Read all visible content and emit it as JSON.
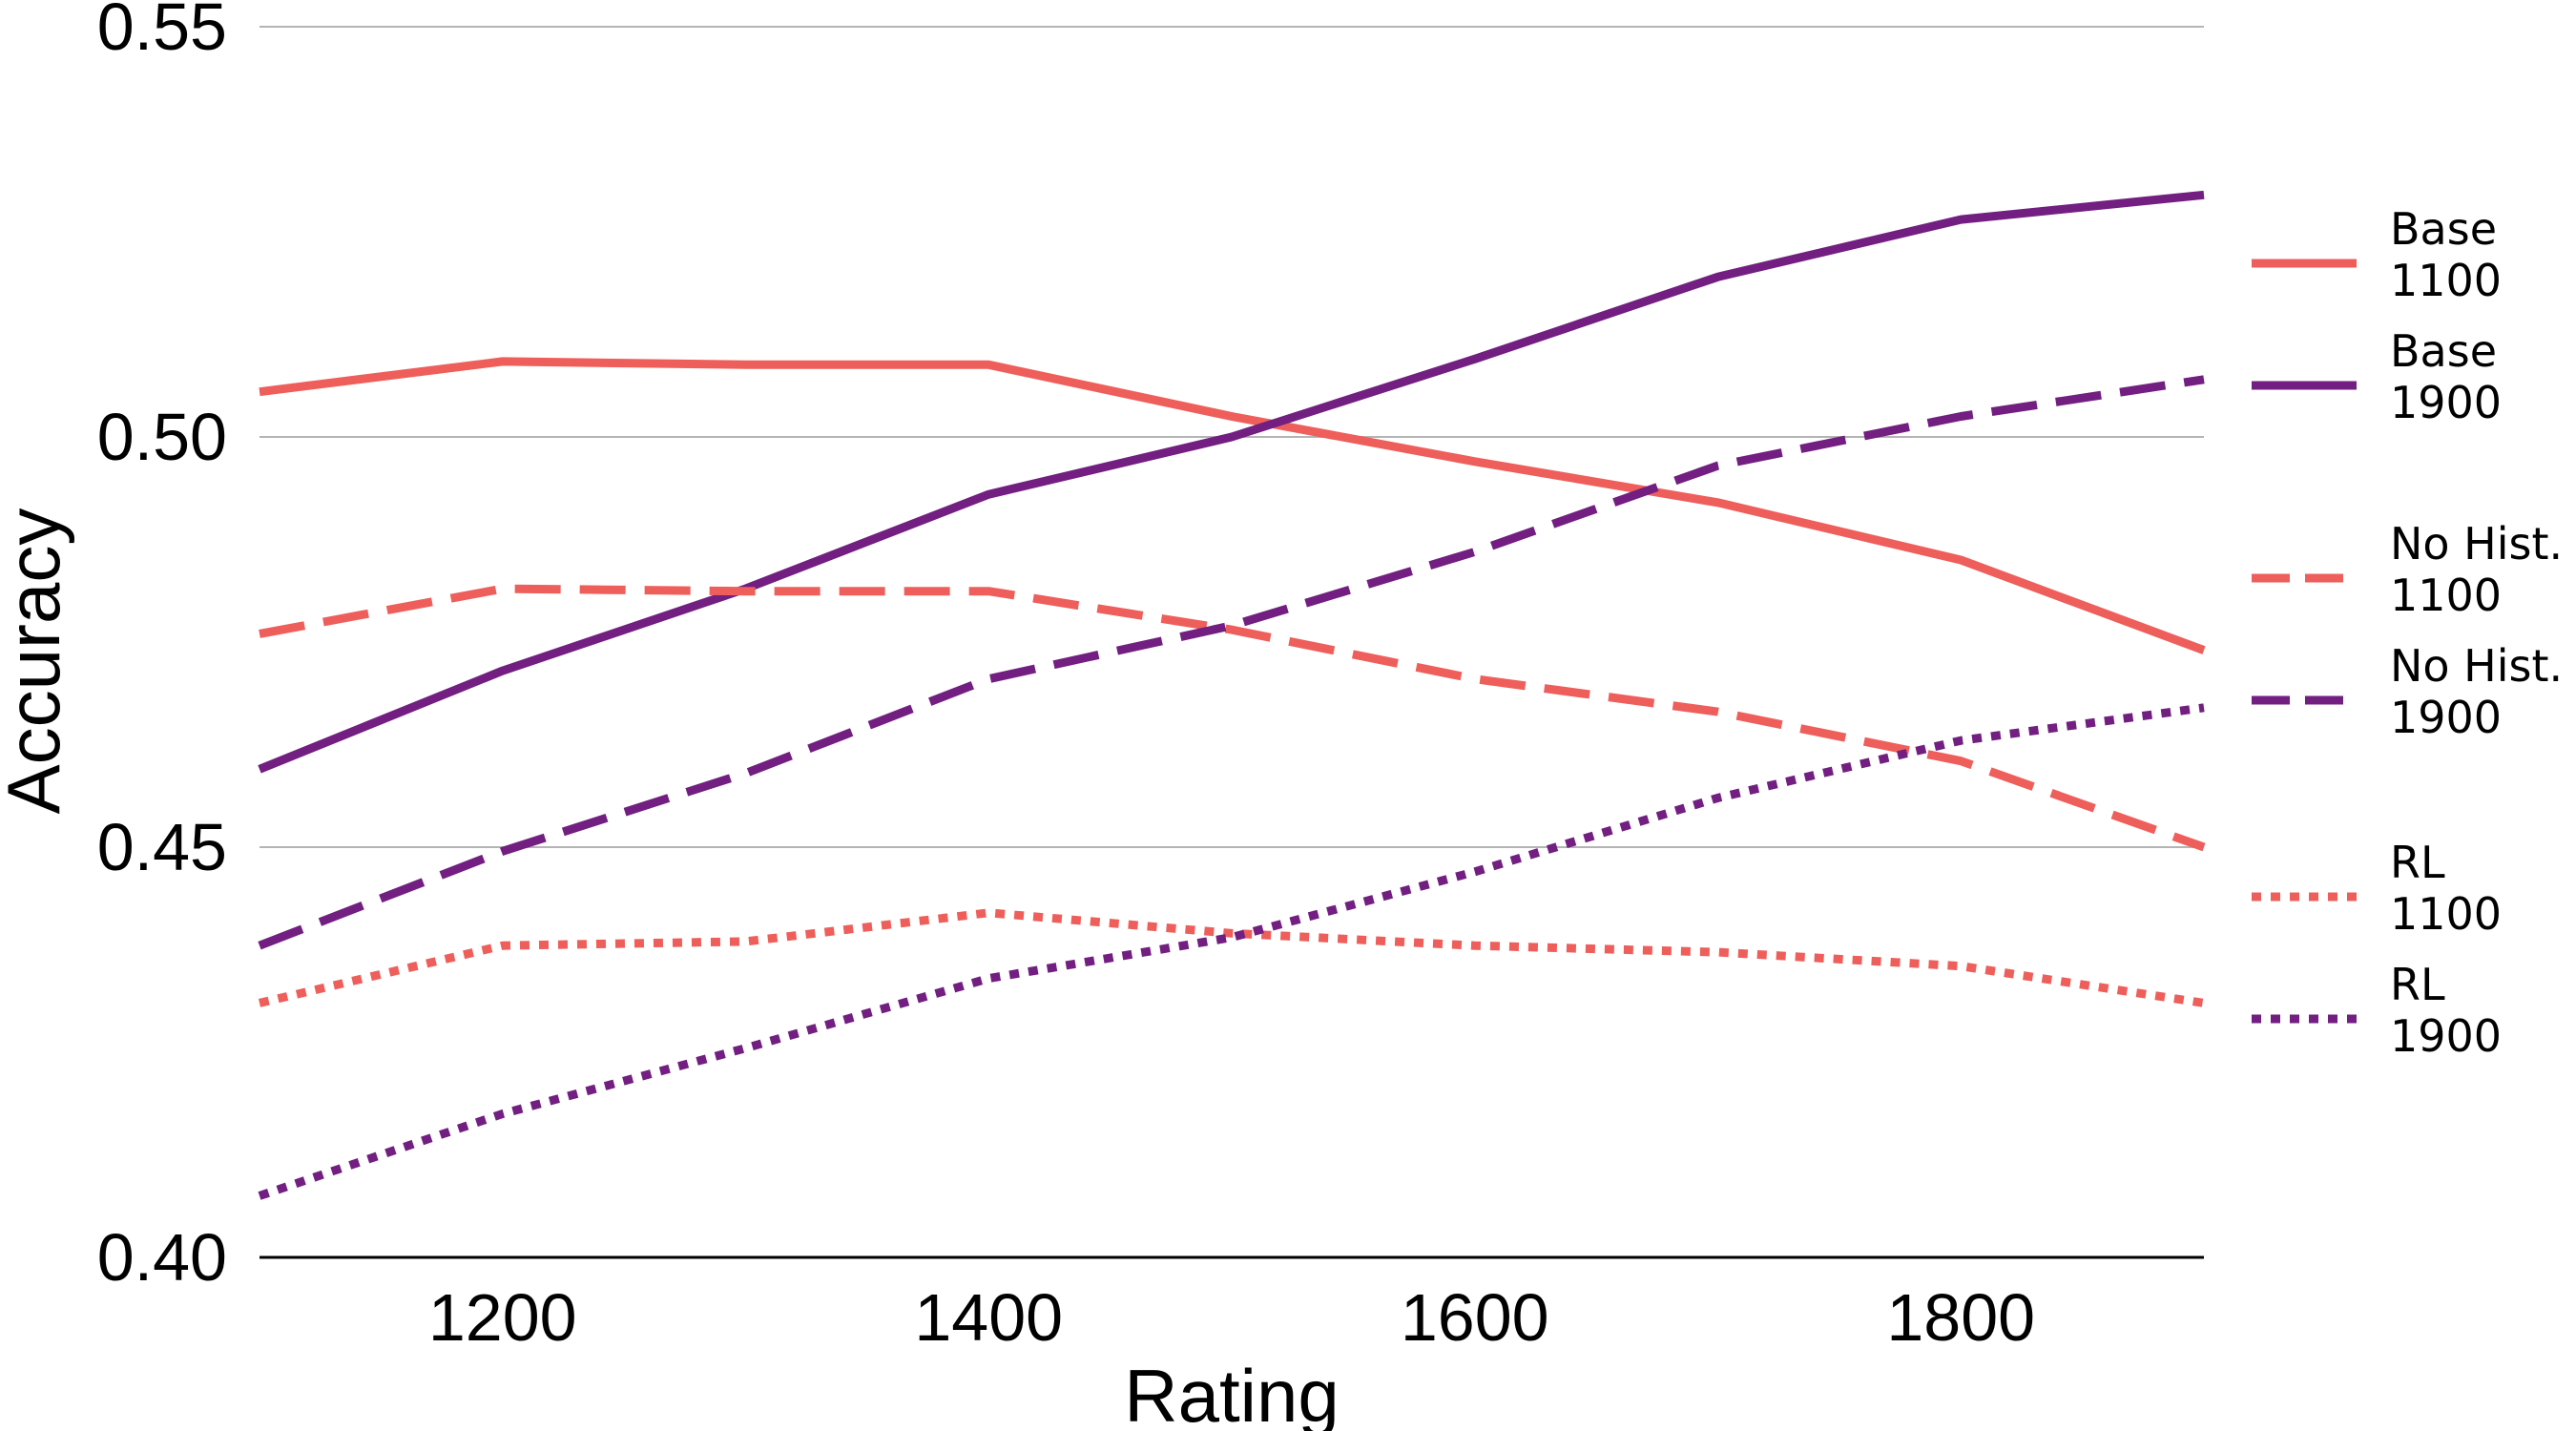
{
  "chart_data": {
    "type": "line",
    "title": "",
    "xlabel": "Rating",
    "ylabel": "Accuracy",
    "xlim": [
      1100,
      1900
    ],
    "ylim": [
      0.4,
      0.55
    ],
    "xticks": [
      "1200",
      "1400",
      "1600",
      "1800"
    ],
    "yticks": [
      "0.40",
      "0.45",
      "0.50",
      "0.55"
    ],
    "grid": "horizontal",
    "legend_position": "right",
    "x": [
      1100,
      1200,
      1300,
      1400,
      1500,
      1600,
      1700,
      1800,
      1900
    ],
    "series": [
      {
        "name": "Base\n1100",
        "name_lines": [
          "Base",
          "1100"
        ],
        "style": "solid",
        "color": "#ee5f5b",
        "values": [
          0.5055,
          0.5092,
          0.5088,
          0.5088,
          0.5025,
          0.497,
          0.492,
          0.485,
          0.474
        ]
      },
      {
        "name": "Base\n1900",
        "name_lines": [
          "Base",
          "1900"
        ],
        "style": "solid",
        "color": "#721f81",
        "values": [
          0.4595,
          0.4715,
          0.4815,
          0.493,
          0.5,
          0.5095,
          0.5195,
          0.5265,
          0.5295
        ]
      },
      {
        "name": "No Hist.\n1100",
        "name_lines": [
          "No Hist.",
          "1100"
        ],
        "style": "dashed",
        "color": "#ee5f5b",
        "values": [
          0.476,
          0.4815,
          0.4812,
          0.4812,
          0.4765,
          0.4705,
          0.4665,
          0.4605,
          0.45
        ]
      },
      {
        "name": "No Hist.\n1900",
        "name_lines": [
          "No Hist.",
          "1900"
        ],
        "style": "dashed",
        "color": "#721f81",
        "values": [
          0.438,
          0.4495,
          0.459,
          0.4705,
          0.477,
          0.486,
          0.4965,
          0.5025,
          0.507
        ]
      },
      {
        "name": "RL\n1100",
        "name_lines": [
          "RL",
          "1100"
        ],
        "style": "dotted",
        "color": "#ee5f5b",
        "values": [
          0.431,
          0.438,
          0.4385,
          0.442,
          0.4395,
          0.438,
          0.4372,
          0.4355,
          0.431
        ]
      },
      {
        "name": "RL\n1900",
        "name_lines": [
          "RL",
          "1900"
        ],
        "style": "dotted",
        "color": "#721f81",
        "values": [
          0.4075,
          0.4175,
          0.4255,
          0.434,
          0.439,
          0.447,
          0.456,
          0.463,
          0.467
        ]
      }
    ]
  }
}
